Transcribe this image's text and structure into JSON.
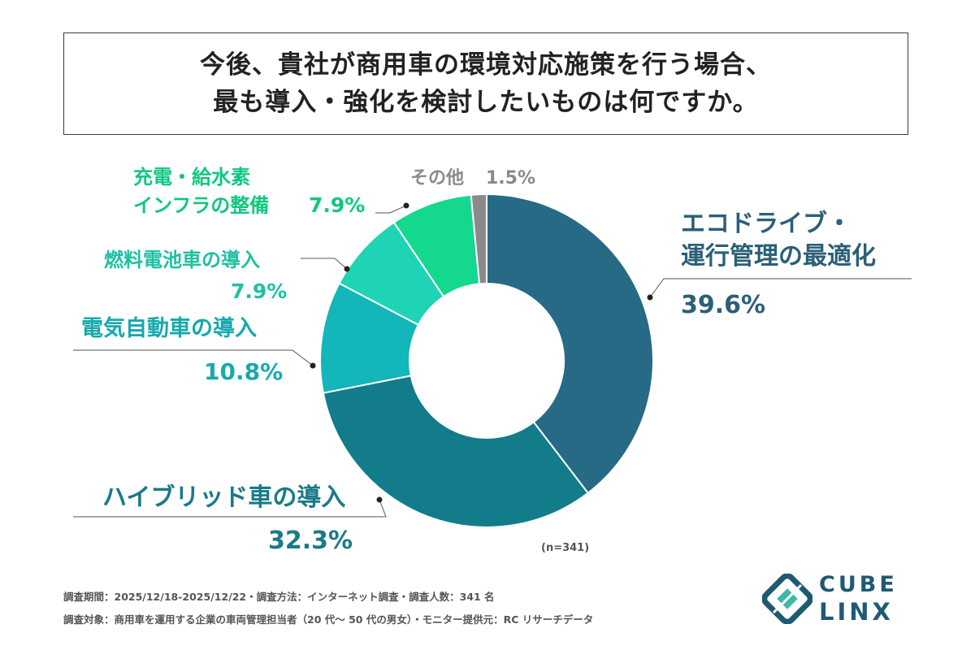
{
  "title": {
    "line1": "今後、貴社が商用車の環境対応施策を行う場合、",
    "line2": "最も導入・強化を検討したいものは何ですか。"
  },
  "chart_data": {
    "type": "pie",
    "donut": true,
    "n_label": "(n=341)",
    "slices": [
      {
        "label": "エコドライブ・運行管理の最適化",
        "label_lines": [
          "エコドライブ・",
          "運行管理の最適化"
        ],
        "value": 39.6,
        "value_label": "39.6%",
        "color": "#266a85"
      },
      {
        "label": "ハイブリッド車の導入",
        "label_lines": [
          "ハイブリッド車の導入"
        ],
        "value": 32.3,
        "value_label": "32.3%",
        "color": "#127c8a"
      },
      {
        "label": "電気自動車の導入",
        "label_lines": [
          "電気自動車の導入"
        ],
        "value": 10.8,
        "value_label": "10.8%",
        "color": "#13b6b9"
      },
      {
        "label": "燃料電池車の導入",
        "label_lines": [
          "燃料電池車の導入"
        ],
        "value": 7.9,
        "value_label": "7.9%",
        "color": "#1fd4b4"
      },
      {
        "label": "充電・給水素インフラの整備",
        "label_lines": [
          "充電・給水素",
          "インフラの整備"
        ],
        "value": 7.9,
        "value_label": "7.9%",
        "color": "#13d88e"
      },
      {
        "label": "その他",
        "label_lines": [
          "その他"
        ],
        "value": 1.5,
        "value_label": "1.5%",
        "color": "#8a8a8a"
      }
    ]
  },
  "footer": {
    "line1": "調査期間：2025/12/18-2025/12/22・調査方法：インターネット調査・調査人数：341 名",
    "line2": "調査対象：商用車を運用する企業の車両管理担当者（20 代〜 50 代の男女）・モニター提供元：RC リサーチデータ"
  },
  "logo": {
    "line1": "CUBE",
    "line2": "LINX",
    "color": "#1e5a72"
  }
}
